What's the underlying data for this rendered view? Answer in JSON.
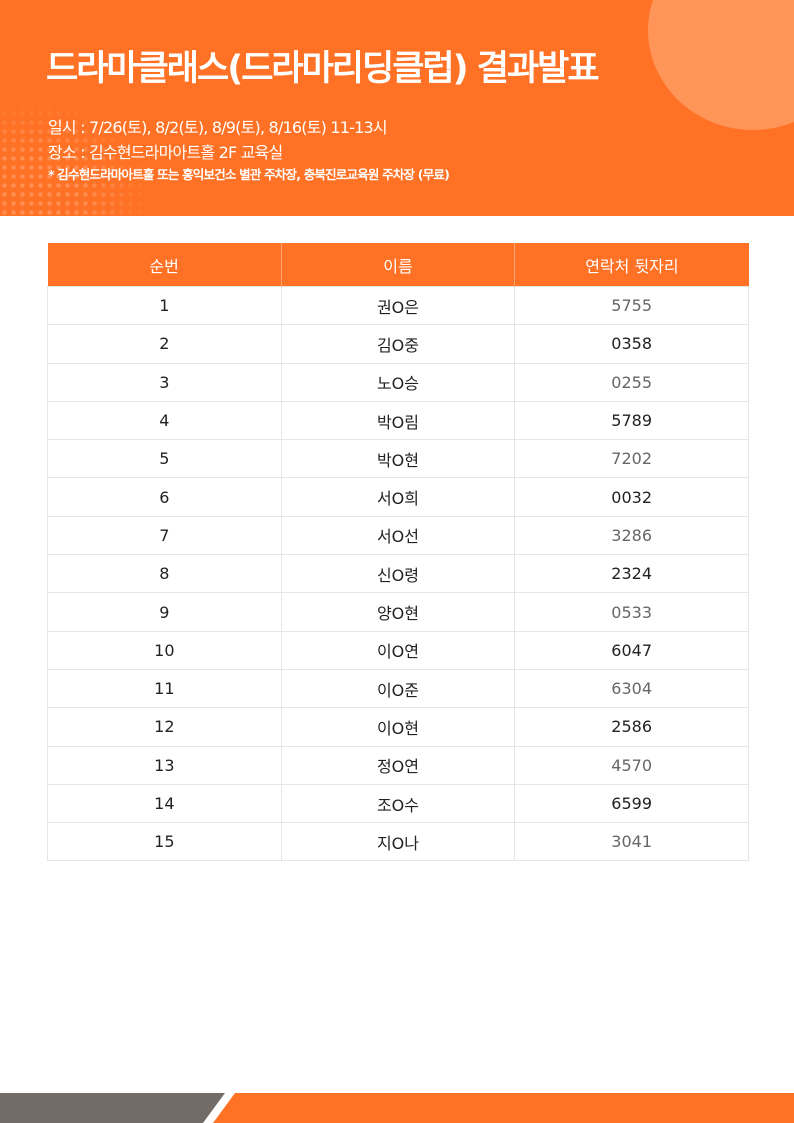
{
  "header": {
    "title": "드라마클래스(드라마리딩클럽) 결과발표",
    "date_line": "일시 : 7/26(토), 8/2(토), 8/9(토), 8/16(토) 11-13시",
    "place_line": "장소 : 김수현드라마아트홀 2F 교육실",
    "parking_note": "* 김수현드라마아트홀 또는 홍익보건소 별관 주차장, 충북진로교육원 주차장 (무료)"
  },
  "colors": {
    "accent": "#ff7124",
    "footer_gray": "#736c66"
  },
  "table": {
    "columns": [
      "순번",
      "이름",
      "연락처 뒷자리"
    ],
    "rows": [
      [
        "1",
        "권O은",
        "5755"
      ],
      [
        "2",
        "김O중",
        "0358"
      ],
      [
        "3",
        "노O승",
        "0255"
      ],
      [
        "4",
        "박O림",
        "5789"
      ],
      [
        "5",
        "박O현",
        "7202"
      ],
      [
        "6",
        "서O희",
        "0032"
      ],
      [
        "7",
        "서O선",
        "3286"
      ],
      [
        "8",
        "신O령",
        "2324"
      ],
      [
        "9",
        "양O현",
        "0533"
      ],
      [
        "10",
        "이O연",
        "6047"
      ],
      [
        "11",
        "이O준",
        "6304"
      ],
      [
        "12",
        "이O현",
        "2586"
      ],
      [
        "13",
        "정O연",
        "4570"
      ],
      [
        "14",
        "조O수",
        "6599"
      ],
      [
        "15",
        "지O나",
        "3041"
      ]
    ]
  }
}
